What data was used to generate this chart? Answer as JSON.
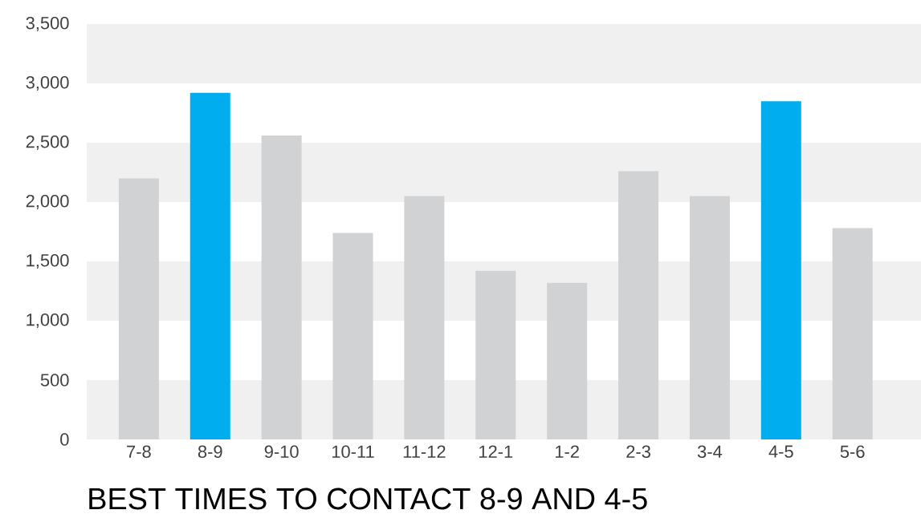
{
  "chart_data": {
    "type": "bar",
    "title": "BEST TIMES TO CONTACT 8-9 AND 4-5",
    "categories": [
      "7-8",
      "8-9",
      "9-10",
      "10-11",
      "11-12",
      "12-1",
      "1-2",
      "2-3",
      "3-4",
      "4-5",
      "5-6"
    ],
    "values": [
      2200,
      2920,
      2560,
      1740,
      2050,
      1420,
      1320,
      2260,
      2050,
      2850,
      1780
    ],
    "colors": [
      "#d1d2d4",
      "#00aeef",
      "#d1d2d4",
      "#d1d2d4",
      "#d1d2d4",
      "#d1d2d4",
      "#d1d2d4",
      "#d1d2d4",
      "#d1d2d4",
      "#00aeef",
      "#d1d2d4"
    ],
    "ylim": [
      0,
      3500
    ],
    "yticks": [
      {
        "value": 0,
        "label": "0"
      },
      {
        "value": 500,
        "label": "500"
      },
      {
        "value": 1000,
        "label": "1,000"
      },
      {
        "value": 1500,
        "label": "1,500"
      },
      {
        "value": 2000,
        "label": "2,000"
      },
      {
        "value": 2500,
        "label": "2,500"
      },
      {
        "value": 3000,
        "label": "3,000"
      },
      {
        "value": 3500,
        "label": "3,500"
      }
    ],
    "bands": [
      {
        "axis": "y",
        "from": 0,
        "to": 500,
        "color": "#f0f0f0"
      },
      {
        "axis": "y",
        "from": 1000,
        "to": 1500,
        "color": "#f0f0f0"
      },
      {
        "axis": "y",
        "from": 2000,
        "to": 2500,
        "color": "#f0f0f0"
      },
      {
        "axis": "y",
        "from": 3000,
        "to": 3500,
        "color": "#f0f0f0"
      }
    ],
    "grid": false
  }
}
